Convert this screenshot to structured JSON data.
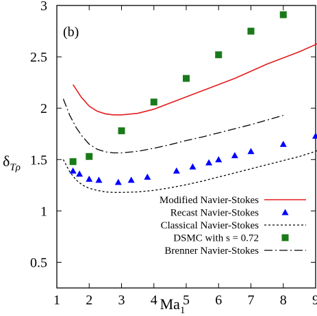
{
  "chart_data": {
    "type": "scatter",
    "panel_label": "(b)",
    "xlabel_base": "Ma",
    "xlabel_sub": "1",
    "ylabel_base": "δ",
    "ylabel_sub": "Tρ",
    "xlim": [
      1,
      9
    ],
    "ylim": [
      0.25,
      3
    ],
    "xticks": [
      1,
      2,
      3,
      4,
      5,
      6,
      7,
      8,
      9
    ],
    "yticks": [
      0.5,
      1,
      1.5,
      2,
      2.5,
      3
    ],
    "ytick_labels": [
      "0.5",
      "1",
      "1.5",
      "2",
      "2.5",
      "3"
    ],
    "legend_position": "bottom-right",
    "grid": false,
    "series": [
      {
        "name": "Modified Navier-Stokes",
        "style": "line",
        "color": "#e41a1c",
        "x": [
          1.5,
          1.75,
          2.0,
          2.25,
          2.5,
          2.75,
          3.0,
          3.5,
          4.0,
          4.5,
          5.0,
          5.5,
          6.0,
          6.5,
          7.0,
          7.5,
          8.0,
          8.5,
          9.0,
          9.2
        ],
        "y": [
          2.23,
          2.11,
          2.02,
          1.97,
          1.945,
          1.935,
          1.935,
          1.95,
          1.99,
          2.05,
          2.11,
          2.17,
          2.23,
          2.29,
          2.36,
          2.43,
          2.49,
          2.55,
          2.62,
          2.65
        ]
      },
      {
        "name": "Recast Navier-Stokes",
        "style": "triangle",
        "color": "#0000ff",
        "x": [
          1.5,
          1.7,
          2.0,
          2.3,
          2.9,
          3.3,
          3.8,
          4.7,
          5.2,
          5.7,
          6.0,
          6.5,
          7.0,
          8.0,
          9.0
        ],
        "y": [
          1.39,
          1.36,
          1.31,
          1.3,
          1.28,
          1.3,
          1.33,
          1.39,
          1.43,
          1.47,
          1.5,
          1.54,
          1.58,
          1.65,
          1.73
        ]
      },
      {
        "name": "Classical Navier-Stokes",
        "style": "dotted",
        "color": "#000000",
        "x": [
          1.2,
          1.4,
          1.6,
          1.8,
          2.0,
          2.25,
          2.5,
          2.75,
          3.0,
          3.5,
          4.0,
          4.5,
          5.0,
          5.5,
          6.0,
          6.5,
          7.0,
          7.5,
          8.0,
          8.5,
          9.0,
          9.2
        ],
        "y": [
          1.5,
          1.38,
          1.3,
          1.25,
          1.22,
          1.2,
          1.185,
          1.18,
          1.18,
          1.185,
          1.2,
          1.225,
          1.255,
          1.29,
          1.33,
          1.37,
          1.41,
          1.45,
          1.49,
          1.53,
          1.58,
          1.61
        ]
      },
      {
        "name": "DSMC with s = 0.72",
        "style": "square",
        "color": "#1a7a1a",
        "x": [
          1.5,
          2.0,
          3.0,
          4.0,
          5.0,
          6.0,
          7.0,
          8.0
        ],
        "y": [
          1.48,
          1.53,
          1.78,
          2.06,
          2.29,
          2.52,
          2.75,
          2.91
        ]
      },
      {
        "name": "Brenner Navier-Stokes",
        "style": "dashdot",
        "color": "#000000",
        "x": [
          1.2,
          1.4,
          1.6,
          1.8,
          2.0,
          2.25,
          2.5,
          2.75,
          3.0,
          3.5,
          4.0,
          4.5,
          5.0,
          5.5,
          6.0,
          6.5,
          7.0,
          7.5,
          8.0
        ],
        "y": [
          2.09,
          1.93,
          1.81,
          1.72,
          1.65,
          1.6,
          1.575,
          1.565,
          1.565,
          1.58,
          1.61,
          1.645,
          1.685,
          1.72,
          1.76,
          1.8,
          1.84,
          1.885,
          1.93
        ]
      }
    ]
  }
}
